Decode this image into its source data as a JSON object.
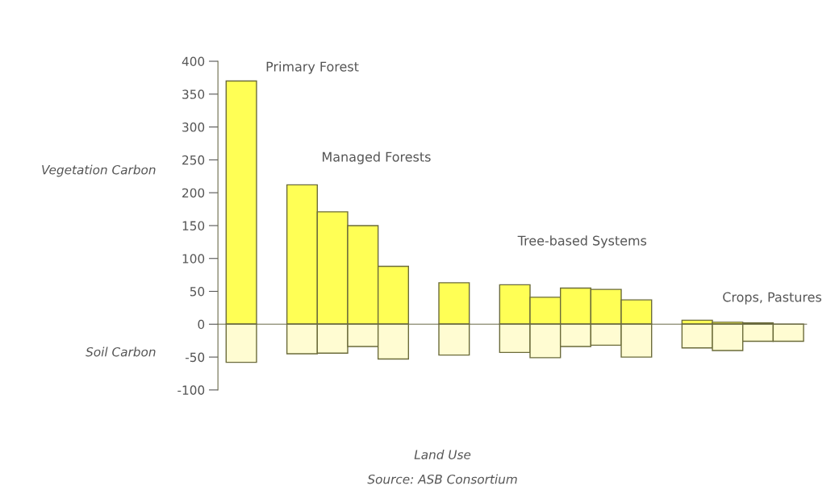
{
  "chart_data": {
    "type": "bar",
    "xlabel": "Land Use",
    "categories": [
      null,
      null,
      null,
      null,
      null,
      null,
      null,
      null,
      null,
      null,
      null,
      null,
      null,
      null,
      null,
      null,
      null,
      null,
      null
    ],
    "series": [
      {
        "color": "#ffff55",
        "values": [
          370,
          null,
          212,
          171,
          150,
          88,
          null,
          63,
          null,
          60,
          41,
          55,
          53,
          37,
          null,
          6,
          3,
          2,
          null
        ]
      },
      {
        "color": "#fffcd2",
        "values": [
          -58,
          null,
          -45,
          -44,
          -34,
          -53,
          null,
          -47,
          null,
          -43,
          -51,
          -34,
          -32,
          -50,
          null,
          -36,
          -40,
          -26,
          -26
        ]
      }
    ],
    "ylim": [
      -100,
      400
    ],
    "yticks": [
      -100,
      -50,
      0,
      50,
      100,
      150,
      200,
      250,
      300,
      350,
      400
    ],
    "tick_labels": "y",
    "stacked": true,
    "annotations": [
      "Vegetation Carbon",
      "Soil Carbon",
      "Primary Forest",
      "Managed Forests",
      "Tree-based Systems",
      "Crops, Pastures",
      "Source: ASB Consortium"
    ]
  }
}
